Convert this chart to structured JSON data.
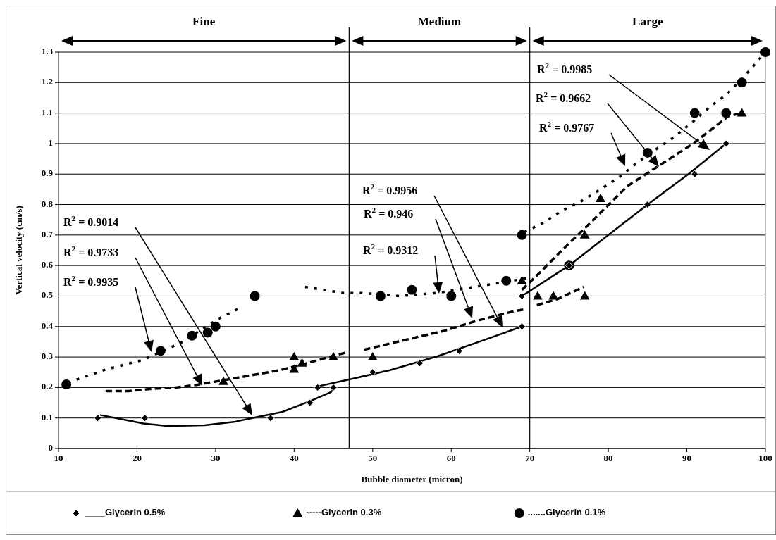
{
  "chart_data": {
    "type": "scatter",
    "xlabel": "Bubble diameter (micron)",
    "ylabel": "Vertical velocity (cm/s)",
    "xlim": [
      10,
      100
    ],
    "xticks": [
      10,
      20,
      30,
      40,
      50,
      60,
      70,
      80,
      90,
      100
    ],
    "ylim": [
      0,
      1.3
    ],
    "yticks": [
      0,
      0.1,
      0.2,
      0.3,
      0.4,
      0.5,
      0.6,
      0.7,
      0.8,
      0.9,
      1,
      1.1,
      1.2,
      1.3
    ],
    "grid": "y",
    "legend": "bottom",
    "ref_lines": [
      {
        "axis": "x",
        "value": 47,
        "color": "#000000"
      },
      {
        "axis": "x",
        "value": 70,
        "color": "#000000"
      }
    ],
    "series": [
      {
        "name": "____Glycerin 0.5%",
        "color": "#000000",
        "marker": "diamond",
        "x": [
          15,
          21,
          37,
          42,
          43,
          45,
          50,
          56,
          61,
          69,
          69,
          75,
          85,
          91,
          95
        ],
        "values": [
          0.1,
          0.1,
          0.1,
          0.15,
          0.2,
          0.2,
          0.25,
          0.28,
          0.32,
          0.4,
          0.5,
          0.6,
          0.8,
          0.9,
          1
        ]
      },
      {
        "name": "-----Glycerin 0.3%",
        "color": "#000000",
        "marker": "triangle",
        "x": [
          31,
          40,
          40,
          41,
          45,
          50,
          69,
          71,
          73,
          77,
          77,
          79,
          97
        ],
        "values": [
          0.22,
          0.3,
          0.26,
          0.28,
          0.3,
          0.3,
          0.55,
          0.5,
          0.5,
          0.5,
          0.7,
          0.82,
          1.1
        ]
      },
      {
        "name": ".......Glycerin 0.1%",
        "color": "#000000",
        "marker": "circle",
        "x": [
          11,
          23,
          27,
          29,
          30,
          35,
          51,
          55,
          60,
          67,
          69,
          75,
          85,
          91,
          95,
          97,
          100
        ],
        "values": [
          0.21,
          0.32,
          0.37,
          0.38,
          0.4,
          0.5,
          0.5,
          0.52,
          0.5,
          0.55,
          0.7,
          0.6,
          0.97,
          1.1,
          1.1,
          1.2,
          1.3
        ]
      },
      {
        "type": "line",
        "color": "#000000",
        "line_style": "solid",
        "marker": "none",
        "x": [
          15.3,
          20.8,
          23.8,
          28.6,
          32.5,
          34.9,
          38.5,
          42,
          44.7,
          45.2
        ],
        "values": [
          0.11,
          0.082,
          0.074,
          0.076,
          0.088,
          0.101,
          0.12,
          0.155,
          0.185,
          0.204
        ]
      },
      {
        "type": "line",
        "color": "#000000",
        "line_style": "solid",
        "marker": "none",
        "x": [
          43.1,
          46.8,
          52.2,
          58.2,
          64.2,
          69
        ],
        "values": [
          0.204,
          0.225,
          0.257,
          0.302,
          0.356,
          0.4
        ]
      },
      {
        "type": "line",
        "color": "#000000",
        "line_style": "solid",
        "marker": "none",
        "x": [
          69,
          75,
          80,
          85,
          90.2,
          95
        ],
        "values": [
          0.5,
          0.6,
          0.7,
          0.8,
          0.9,
          1
        ]
      },
      {
        "type": "line",
        "color": "#000000",
        "line_style": "dashed",
        "marker": "none",
        "x": [
          16,
          18.9,
          22,
          25,
          27.7,
          31,
          35.2,
          38.2,
          41.4,
          44.6,
          46.8
        ],
        "values": [
          0.188,
          0.188,
          0.196,
          0.2,
          0.209,
          0.224,
          0.243,
          0.257,
          0.278,
          0.301,
          0.316
        ]
      },
      {
        "type": "line",
        "color": "#000000",
        "line_style": "dashed",
        "marker": "none",
        "x": [
          48.9,
          54.6,
          59.1,
          63.4,
          68.1,
          69.3
        ],
        "values": [
          0.324,
          0.359,
          0.386,
          0.42,
          0.451,
          0.456
        ]
      },
      {
        "type": "line",
        "color": "#000000",
        "line_style": "dashed",
        "marker": "none",
        "x": [
          69,
          71.4,
          74.1,
          78.1,
          82.4,
          86.6,
          90.8,
          95.3,
          97
        ],
        "values": [
          0.52,
          0.58,
          0.65,
          0.75,
          0.86,
          0.93,
          1,
          1.09,
          1.1
        ]
      },
      {
        "type": "line",
        "color": "#000000",
        "line_style": "dashed",
        "marker": "none",
        "x": [
          70.9,
          73.5,
          76.9
        ],
        "values": [
          0.47,
          0.49,
          0.53
        ]
      },
      {
        "type": "line",
        "color": "#000000",
        "line_style": "dotted",
        "marker": "none",
        "x": [
          11.2,
          16,
          20.8,
          25.6,
          30.2,
          33.1
        ],
        "values": [
          0.216,
          0.259,
          0.291,
          0.347,
          0.423,
          0.461
        ]
      },
      {
        "type": "line",
        "color": "#000000",
        "line_style": "dotted",
        "marker": "none",
        "x": [
          41.4,
          43.8,
          46.2,
          48.6,
          53.4,
          58.2,
          63,
          67.8,
          69.8
        ],
        "values": [
          0.53,
          0.52,
          0.51,
          0.51,
          0.5,
          0.51,
          0.53,
          0.55,
          0.56
        ]
      },
      {
        "type": "line",
        "color": "#000000",
        "line_style": "dotted",
        "marker": "none",
        "x": [
          69.3,
          71.7,
          74.1,
          76.5,
          79,
          81.4,
          83.8,
          86,
          88.3,
          90.7,
          92.9,
          95,
          97.3,
          100
        ],
        "values": [
          0.71,
          0.74,
          0.78,
          0.81,
          0.85,
          0.89,
          0.94,
          0.98,
          1.02,
          1.07,
          1.12,
          1.16,
          1.22,
          1.3
        ]
      }
    ],
    "annotations": [
      "Fine",
      "Medium",
      "Large",
      "R$^{2}$ = 0.9014",
      "R$^{2}$ = 0.9733",
      "R$^{2}$ = 0.9935",
      "R$^{2}$ = 0.9956",
      "R$^{2}$ = 0.946",
      "R$^{2}$ = 0.9312",
      "R$^{2}$ = 0.9985",
      "R$^{2}$ = 0.9662",
      "R$^{2}$ = 0.9767"
    ]
  }
}
